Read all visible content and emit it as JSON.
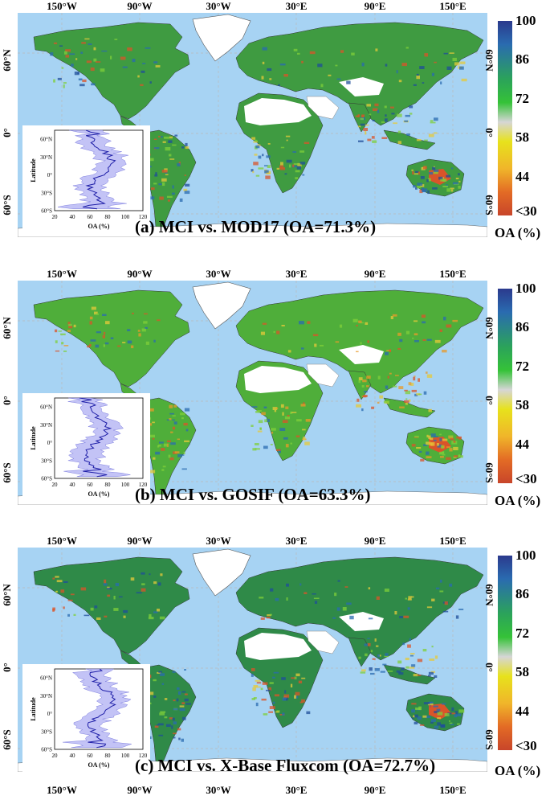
{
  "longitude_labels": [
    "150°W",
    "90°W",
    "30°W",
    "30°E",
    "90°E",
    "150°E"
  ],
  "latitude_labels_left": [
    "60°N",
    "0°",
    "60°S"
  ],
  "latitude_labels_right": [
    "60°N",
    "0°",
    "60°S"
  ],
  "colorbar": {
    "ticks": [
      "100",
      "86",
      "72",
      "58",
      "44",
      "<30"
    ],
    "unit": "OA (%)",
    "colors": [
      "#2b3a8d",
      "#2a6bb0",
      "#2ba35a",
      "#35c238",
      "#d6d6d6",
      "#e7e21c",
      "#f0b52a",
      "#e36b25",
      "#c8452a"
    ]
  },
  "inset": {
    "y_label": "Latitude",
    "x_label": "OA (%)",
    "y_ticks": [
      "60°N",
      "30°N",
      "0°",
      "30°S",
      "60°S"
    ],
    "x_ticks": [
      "20",
      "40",
      "60",
      "80",
      "100",
      "120"
    ]
  },
  "panels": [
    {
      "title": "(a) MCI vs. MOD17 (OA=71.3%)",
      "oa": 71.3
    },
    {
      "title": "(b) MCI vs. GOSIF (OA=63.3%)",
      "oa": 63.3
    },
    {
      "title": "(c) MCI vs. X-Base Fluxcom (OA=72.7%)",
      "oa": 72.7
    }
  ]
}
